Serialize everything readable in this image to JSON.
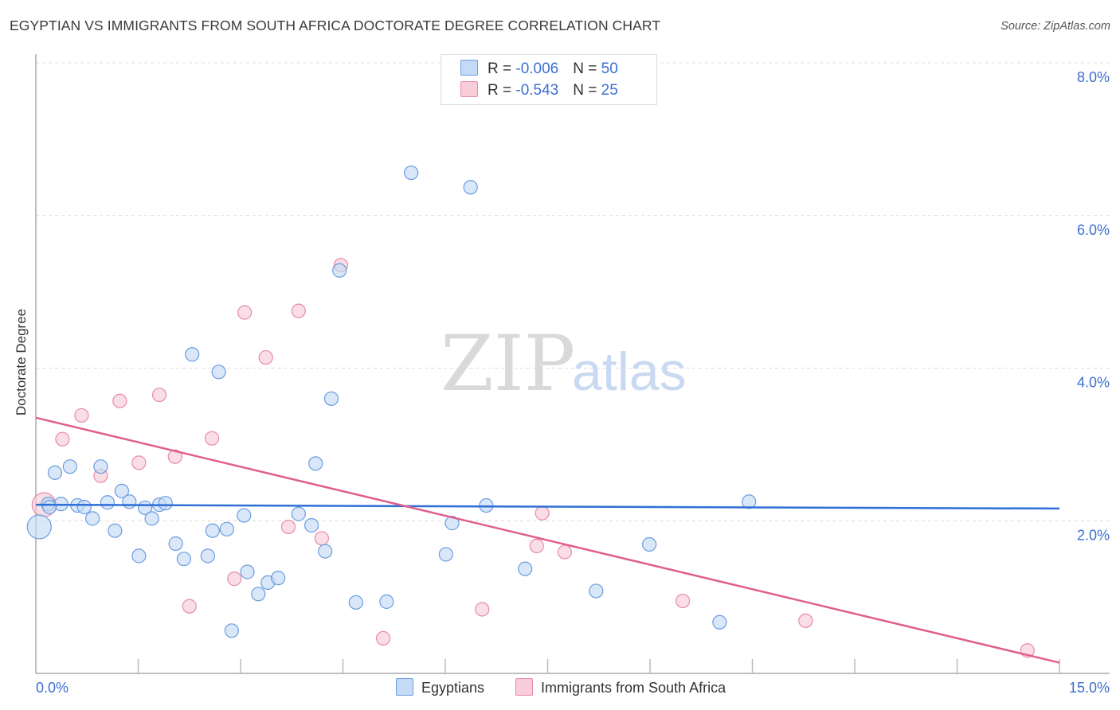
{
  "title": "EGYPTIAN VS IMMIGRANTS FROM SOUTH AFRICA DOCTORATE DEGREE CORRELATION CHART",
  "source": "Source: ZipAtlas.com",
  "watermark": "ZIPatlas",
  "colors": {
    "blue": "#6a9de0",
    "blue_fill": "#c5daf5",
    "blue_line": "#2f6fd6",
    "pink": "#e88aa8",
    "pink_fill": "#f8cdd9",
    "pink_line": "#e0608c",
    "axis_text": "#3c6fd0"
  },
  "legend": {
    "rows": [
      {
        "r_label": "R = ",
        "r": "-0.006",
        "n_label": "N = ",
        "n": "50"
      },
      {
        "r_label": "R = ",
        "r": "-0.543",
        "n_label": "N = ",
        "n": "25"
      }
    ]
  },
  "chart_data": {
    "type": "scatter",
    "title": "EGYPTIAN VS IMMIGRANTS FROM SOUTH AFRICA DOCTORATE DEGREE CORRELATION CHART",
    "xlabel": "",
    "ylabel": "Doctorate Degree",
    "xlim": [
      0,
      15
    ],
    "ylim": [
      0,
      8
    ],
    "x_tick_labels": [
      "0.0%",
      "15.0%"
    ],
    "y_ticks": [
      2,
      4,
      6,
      8
    ],
    "y_tick_labels": [
      "2.0%",
      "4.0%",
      "6.0%",
      "8.0%"
    ],
    "grid": true,
    "legend_position": "top-center",
    "series": [
      {
        "name": "Egyptians",
        "trend": [
          [
            0,
            2.21
          ],
          [
            15,
            2.16
          ]
        ],
        "points": [
          [
            0.05,
            1.92
          ],
          [
            0.18,
            2.22
          ],
          [
            0.28,
            2.63
          ],
          [
            0.37,
            2.22
          ],
          [
            0.5,
            2.71
          ],
          [
            0.61,
            2.2
          ],
          [
            0.71,
            2.18
          ],
          [
            0.83,
            2.03
          ],
          [
            0.95,
            2.71
          ],
          [
            1.05,
            2.24
          ],
          [
            1.16,
            1.87
          ],
          [
            1.26,
            2.39
          ],
          [
            1.37,
            2.25
          ],
          [
            1.51,
            1.54
          ],
          [
            1.6,
            2.17
          ],
          [
            1.7,
            2.03
          ],
          [
            1.81,
            2.21
          ],
          [
            1.9,
            2.23
          ],
          [
            2.05,
            1.7
          ],
          [
            2.17,
            1.5
          ],
          [
            2.29,
            4.18
          ],
          [
            2.52,
            1.54
          ],
          [
            2.59,
            1.87
          ],
          [
            2.68,
            3.95
          ],
          [
            2.8,
            1.89
          ],
          [
            2.87,
            0.56
          ],
          [
            3.05,
            2.07
          ],
          [
            3.1,
            1.33
          ],
          [
            3.26,
            1.04
          ],
          [
            3.4,
            1.19
          ],
          [
            3.55,
            1.25
          ],
          [
            3.85,
            2.09
          ],
          [
            4.04,
            1.94
          ],
          [
            4.1,
            2.75
          ],
          [
            4.24,
            1.6
          ],
          [
            4.33,
            3.6
          ],
          [
            4.45,
            5.28
          ],
          [
            4.69,
            0.93
          ],
          [
            5.14,
            0.94
          ],
          [
            5.5,
            6.56
          ],
          [
            6.01,
            1.56
          ],
          [
            6.1,
            1.97
          ],
          [
            6.37,
            6.37
          ],
          [
            6.6,
            2.2
          ],
          [
            7.17,
            1.37
          ],
          [
            8.21,
            1.08
          ],
          [
            8.99,
            1.69
          ],
          [
            10.02,
            0.67
          ],
          [
            10.45,
            2.25
          ],
          [
            0.2,
            2.18
          ]
        ]
      },
      {
        "name": "Immigrants from South Africa",
        "trend": [
          [
            0,
            3.35
          ],
          [
            15,
            0.14
          ]
        ],
        "points": [
          [
            0.12,
            2.21
          ],
          [
            0.39,
            3.07
          ],
          [
            0.67,
            3.38
          ],
          [
            0.95,
            2.59
          ],
          [
            1.23,
            3.57
          ],
          [
            1.51,
            2.76
          ],
          [
            1.81,
            3.65
          ],
          [
            2.04,
            2.84
          ],
          [
            2.25,
            0.88
          ],
          [
            2.58,
            3.08
          ],
          [
            2.91,
            1.24
          ],
          [
            3.06,
            4.73
          ],
          [
            3.37,
            4.14
          ],
          [
            3.7,
            1.92
          ],
          [
            3.85,
            4.75
          ],
          [
            4.19,
            1.77
          ],
          [
            4.47,
            5.35
          ],
          [
            5.09,
            0.46
          ],
          [
            6.54,
            0.84
          ],
          [
            7.34,
            1.67
          ],
          [
            7.42,
            2.1
          ],
          [
            7.75,
            1.59
          ],
          [
            9.48,
            0.95
          ],
          [
            11.28,
            0.69
          ],
          [
            14.53,
            0.3
          ]
        ]
      }
    ]
  }
}
